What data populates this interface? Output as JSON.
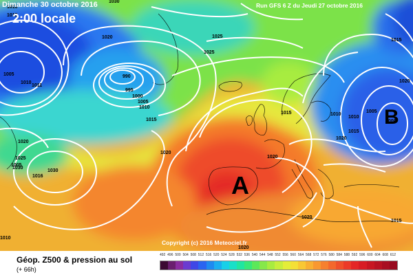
{
  "header": {
    "date": "Dimanche 30 octobre 2016",
    "local_time": "2:00 locale",
    "run_info": "Run GFS 6 Z du Jeudi 27 octobre 2016"
  },
  "map": {
    "pressure_centers": [
      {
        "symbol": "A",
        "meaning": "anticyclone",
        "color": "#000000"
      },
      {
        "symbol": "B",
        "meaning": "depression",
        "color": "#000000"
      }
    ],
    "isobar_labels": [
      "1010",
      "1015",
      "1030",
      "1005",
      "1010",
      "1011",
      "1020",
      "1025",
      "1030",
      "1016",
      "990",
      "995",
      "1000",
      "1005",
      "1010",
      "1025",
      "1015",
      "1020",
      "1030",
      "1020",
      "1025",
      "1005",
      "1010",
      "1000",
      "1010",
      "1015",
      "1015",
      "1020",
      "1015",
      "1020",
      "1020",
      "1020",
      "1005",
      "1010",
      "1015",
      "1020"
    ],
    "copyright": "Copyright (c) 2016 Meteociel.fr"
  },
  "legend": {
    "title": "Géop. Z500 & pression au sol",
    "subtitle": "(+ 66h)",
    "scale_labels": [
      "492",
      "496",
      "500",
      "504",
      "508",
      "512",
      "516",
      "520",
      "524",
      "528",
      "532",
      "536",
      "540",
      "544",
      "548",
      "552",
      "556",
      "560",
      "564",
      "568",
      "572",
      "576",
      "580",
      "584",
      "588",
      "592",
      "596",
      "600",
      "604",
      "608",
      "612"
    ],
    "scale_colors": [
      "#3c0a32",
      "#6a1f6e",
      "#8a2da0",
      "#6b3bd0",
      "#3f47e6",
      "#2a64f0",
      "#1e8af0",
      "#1aaef0",
      "#18d0e8",
      "#18e0c8",
      "#20e6a0",
      "#38e878",
      "#5ce85a",
      "#86e84a",
      "#a8ec40",
      "#c8ee3c",
      "#e4ee38",
      "#f4e036",
      "#f8c834",
      "#f8b032",
      "#f89830",
      "#f6802e",
      "#f4682c",
      "#f0502a",
      "#ec3a28",
      "#e42626",
      "#d81c24",
      "#c81622",
      "#b81222",
      "#a80e22",
      "#980a20"
    ]
  }
}
